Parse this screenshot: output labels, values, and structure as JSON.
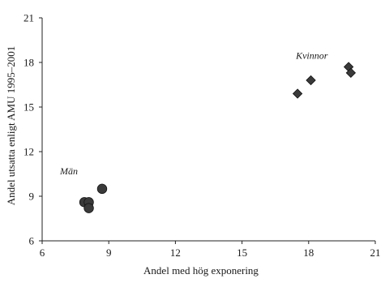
{
  "chart_data": {
    "type": "scatter",
    "title": "",
    "xlabel": "Andel med hög exponering",
    "ylabel": "Andel utsatta enligt AMU 1995–2001",
    "xlim": [
      6,
      21
    ],
    "ylim": [
      6,
      21
    ],
    "xticks": [
      "6",
      "9",
      "12",
      "15",
      "18",
      "21"
    ],
    "yticks": [
      "6",
      "9",
      "12",
      "15",
      "18",
      "21"
    ],
    "grid": false,
    "series": [
      {
        "name": "Män",
        "marker": "circle",
        "color": "#3a3a3a",
        "points": [
          [
            7.9,
            8.6
          ],
          [
            8.1,
            8.6
          ],
          [
            8.1,
            8.2
          ],
          [
            8.7,
            9.5
          ]
        ]
      },
      {
        "name": "Kvinnor",
        "marker": "diamond",
        "color": "#3a3a3a",
        "points": [
          [
            17.5,
            15.9
          ],
          [
            18.1,
            16.8
          ],
          [
            19.8,
            17.7
          ],
          [
            19.9,
            17.3
          ]
        ]
      }
    ]
  }
}
